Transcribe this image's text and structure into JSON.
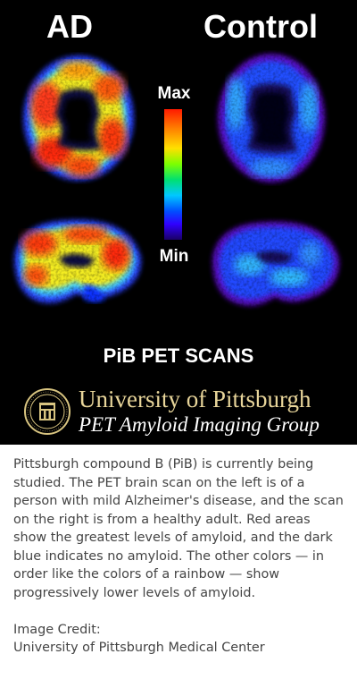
{
  "figure": {
    "label_ad": "AD",
    "label_control": "Control",
    "scale_max": "Max",
    "scale_min": "Min",
    "caption": "PiB PET SCANS",
    "university": "University of Pittsburgh",
    "group": "PET Amyloid Imaging Group"
  },
  "description": "Pittsburgh compound B (PiB) is currently being studied. The PET brain scan on the left is of a person with mild Alzheimer's disease, and the scan on the right is from a healthy adult. Red areas show the greatest levels of amyloid, and the dark blue indicates no amyloid. The other colors — in order like the colors of a rainbow — show progressively lower levels of amyloid.",
  "credit": {
    "label": "Image Credit:",
    "source": "University of Pittsburgh Medical Center"
  }
}
